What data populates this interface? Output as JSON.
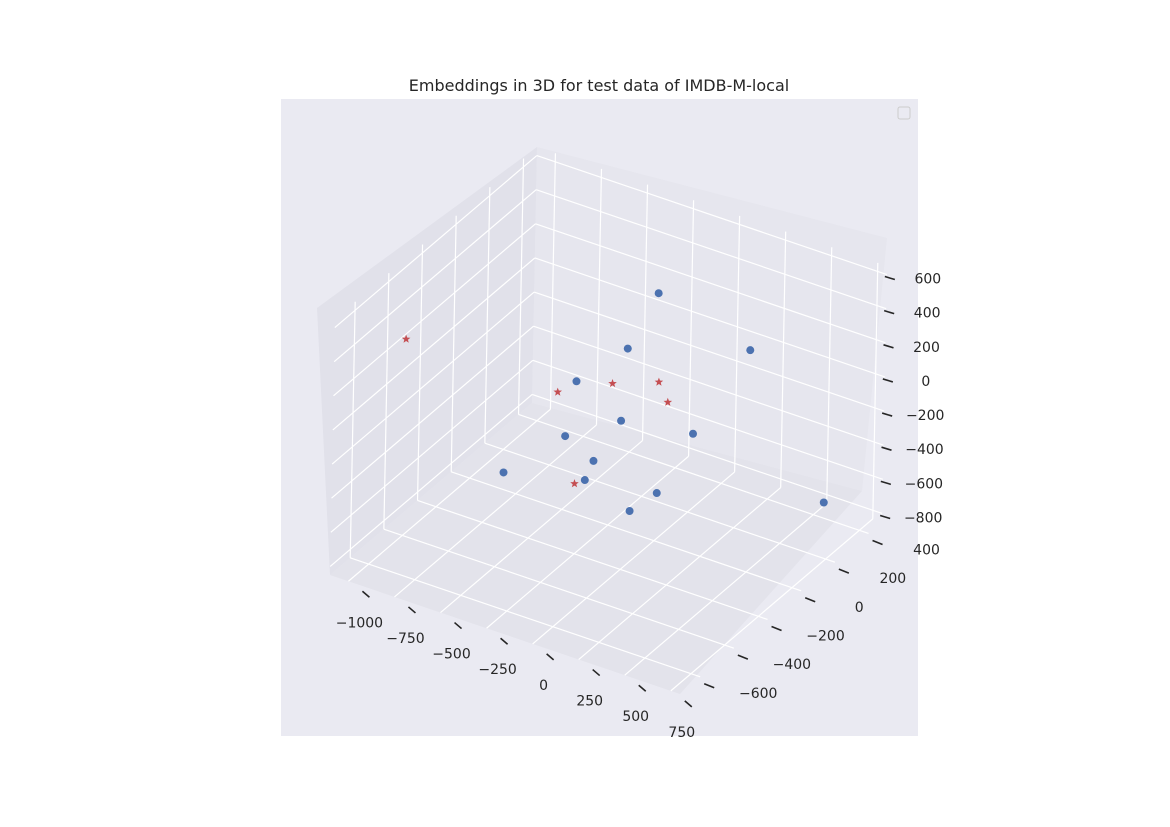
{
  "chart_data": {
    "type": "scatter",
    "projection": "3d",
    "title": "Embeddings in 3D for test data of IMDB-M-local",
    "xlabel": "",
    "ylabel": "",
    "zlabel": "",
    "xlim": [
      -1100,
      800
    ],
    "ylim": [
      -720,
      480
    ],
    "zlim": [
      -850,
      650
    ],
    "xticks": [
      -1000,
      -750,
      -500,
      -250,
      0,
      250,
      500,
      750
    ],
    "yticks": [
      -600,
      -400,
      -200,
      0,
      200,
      400
    ],
    "zticks": [
      -800,
      -600,
      -400,
      -200,
      0,
      200,
      400,
      600
    ],
    "grid": true,
    "legend": {
      "placement": "top-right",
      "entries": []
    },
    "series": [
      {
        "marker": "circle",
        "color": "#4c72b0",
        "points": [
          {
            "x": 0,
            "y": 0,
            "z": 600
          },
          {
            "x": 500,
            "y": 0,
            "z": 450
          },
          {
            "x": -300,
            "y": -150,
            "z": 100
          },
          {
            "x": -250,
            "y": 100,
            "z": 100
          },
          {
            "x": -100,
            "y": -100,
            "z": -100
          },
          {
            "x": 200,
            "y": 0,
            "z": -150
          },
          {
            "x": -400,
            "y": -100,
            "z": -300
          },
          {
            "x": -200,
            "y": -150,
            "z": -330
          },
          {
            "x": -200,
            "y": -200,
            "z": -400
          },
          {
            "x": -550,
            "y": -300,
            "z": -400
          },
          {
            "x": 100,
            "y": -100,
            "z": -450
          },
          {
            "x": 0,
            "y": -150,
            "z": -550
          },
          {
            "x": 600,
            "y": 350,
            "z": -700
          }
        ]
      },
      {
        "marker": "star",
        "color": "#c44e52",
        "points": [
          {
            "x": -1000,
            "y": -400,
            "z": 300
          },
          {
            "x": -150,
            "y": -100,
            "z": 100
          },
          {
            "x": -400,
            "y": -150,
            "z": 0
          },
          {
            "x": 100,
            "y": -100,
            "z": 200
          },
          {
            "x": 150,
            "y": -100,
            "z": 100
          },
          {
            "x": -300,
            "y": -150,
            "z": -500
          }
        ]
      }
    ]
  }
}
